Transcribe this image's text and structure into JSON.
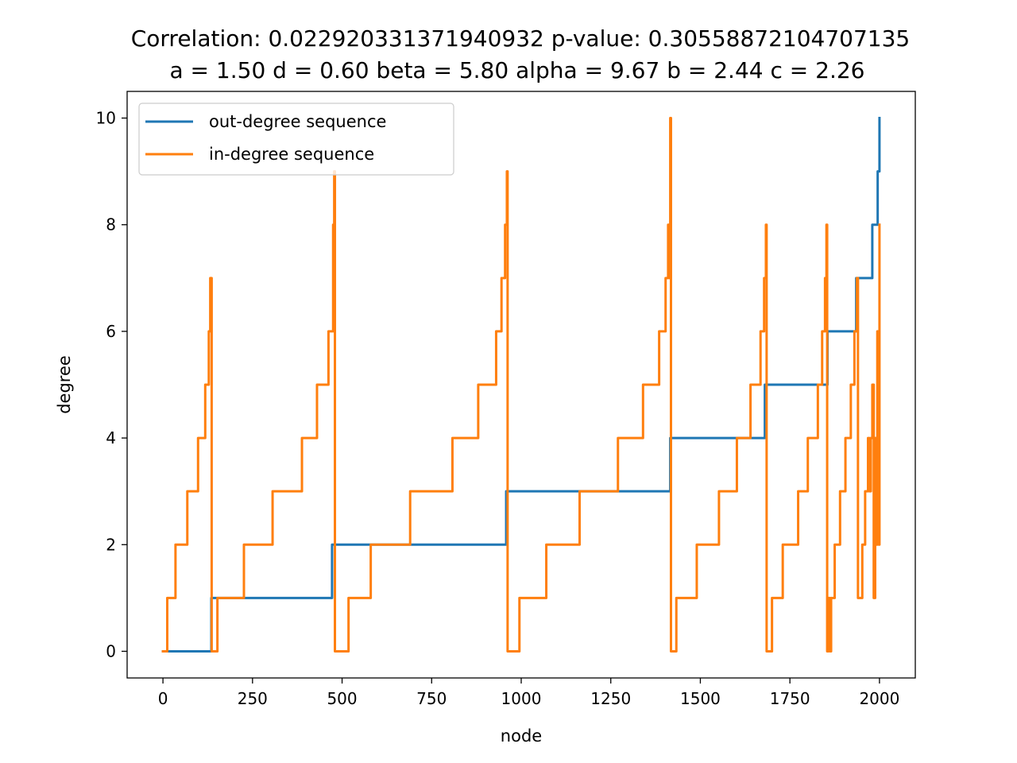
{
  "chart_data": {
    "type": "line",
    "title": "Correlation: 0.022920331371940932 p-value: 0.30558872104707135",
    "subtitle": "a = 1.50 d = 0.60 beta = 5.80 alpha = 9.67 b = 2.44 c = 2.26",
    "xlabel": "node",
    "ylabel": "degree",
    "xlim": [
      -100,
      2100
    ],
    "ylim": [
      -0.5,
      10.5
    ],
    "xticks": [
      0,
      250,
      500,
      750,
      1000,
      1250,
      1500,
      1750,
      2000
    ],
    "yticks": [
      0,
      2,
      4,
      6,
      8,
      10
    ],
    "grid": false,
    "legend": "upper-left",
    "series": [
      {
        "name": "out-degree sequence",
        "color": "#1f77b4",
        "points": [
          [
            0,
            0
          ],
          [
            135,
            0
          ],
          [
            135,
            1
          ],
          [
            472,
            1
          ],
          [
            472,
            2
          ],
          [
            958,
            2
          ],
          [
            958,
            3
          ],
          [
            1416,
            3
          ],
          [
            1416,
            4
          ],
          [
            1680,
            4
          ],
          [
            1680,
            5
          ],
          [
            1855,
            5
          ],
          [
            1855,
            6
          ],
          [
            1935,
            6
          ],
          [
            1935,
            7
          ],
          [
            1980,
            7
          ],
          [
            1980,
            8
          ],
          [
            1995,
            8
          ],
          [
            1995,
            9
          ],
          [
            2000,
            9
          ],
          [
            2000,
            10
          ]
        ]
      },
      {
        "name": "in-degree sequence",
        "color": "#ff7f0e",
        "points": [
          [
            0,
            0
          ],
          [
            12,
            0
          ],
          [
            12,
            1
          ],
          [
            35,
            1
          ],
          [
            35,
            2
          ],
          [
            68,
            2
          ],
          [
            68,
            3
          ],
          [
            98,
            3
          ],
          [
            98,
            4
          ],
          [
            118,
            4
          ],
          [
            118,
            5
          ],
          [
            128,
            5
          ],
          [
            128,
            6
          ],
          [
            132,
            6
          ],
          [
            132,
            7
          ],
          [
            136,
            7
          ],
          [
            136,
            0
          ],
          [
            152,
            0
          ],
          [
            152,
            1
          ],
          [
            226,
            1
          ],
          [
            226,
            2
          ],
          [
            306,
            2
          ],
          [
            306,
            3
          ],
          [
            388,
            3
          ],
          [
            388,
            4
          ],
          [
            430,
            4
          ],
          [
            430,
            5
          ],
          [
            462,
            5
          ],
          [
            462,
            6
          ],
          [
            475,
            6
          ],
          [
            475,
            8
          ],
          [
            478,
            8
          ],
          [
            478,
            9
          ],
          [
            480,
            9
          ],
          [
            480,
            0
          ],
          [
            518,
            0
          ],
          [
            518,
            1
          ],
          [
            580,
            1
          ],
          [
            580,
            2
          ],
          [
            690,
            2
          ],
          [
            690,
            3
          ],
          [
            808,
            3
          ],
          [
            808,
            4
          ],
          [
            880,
            4
          ],
          [
            880,
            5
          ],
          [
            930,
            5
          ],
          [
            930,
            6
          ],
          [
            945,
            6
          ],
          [
            945,
            7
          ],
          [
            955,
            7
          ],
          [
            955,
            8
          ],
          [
            960,
            8
          ],
          [
            960,
            9
          ],
          [
            962,
            9
          ],
          [
            962,
            0
          ],
          [
            995,
            0
          ],
          [
            995,
            1
          ],
          [
            1070,
            1
          ],
          [
            1070,
            2
          ],
          [
            1163,
            2
          ],
          [
            1163,
            3
          ],
          [
            1270,
            3
          ],
          [
            1270,
            4
          ],
          [
            1340,
            4
          ],
          [
            1340,
            5
          ],
          [
            1385,
            5
          ],
          [
            1385,
            6
          ],
          [
            1403,
            6
          ],
          [
            1403,
            7
          ],
          [
            1410,
            7
          ],
          [
            1410,
            8
          ],
          [
            1413,
            8
          ],
          [
            1413,
            7
          ],
          [
            1416,
            7
          ],
          [
            1416,
            10
          ],
          [
            1418,
            10
          ],
          [
            1418,
            0
          ],
          [
            1433,
            0
          ],
          [
            1433,
            1
          ],
          [
            1490,
            1
          ],
          [
            1490,
            2
          ],
          [
            1552,
            2
          ],
          [
            1552,
            3
          ],
          [
            1602,
            3
          ],
          [
            1602,
            4
          ],
          [
            1640,
            4
          ],
          [
            1640,
            5
          ],
          [
            1668,
            5
          ],
          [
            1668,
            6
          ],
          [
            1678,
            6
          ],
          [
            1678,
            7
          ],
          [
            1683,
            7
          ],
          [
            1683,
            8
          ],
          [
            1685,
            8
          ],
          [
            1685,
            0
          ],
          [
            1700,
            0
          ],
          [
            1700,
            1
          ],
          [
            1730,
            1
          ],
          [
            1730,
            2
          ],
          [
            1773,
            2
          ],
          [
            1773,
            3
          ],
          [
            1800,
            3
          ],
          [
            1800,
            4
          ],
          [
            1828,
            4
          ],
          [
            1828,
            5
          ],
          [
            1840,
            5
          ],
          [
            1840,
            6
          ],
          [
            1848,
            6
          ],
          [
            1848,
            7
          ],
          [
            1852,
            7
          ],
          [
            1852,
            8
          ],
          [
            1854,
            8
          ],
          [
            1854,
            0
          ],
          [
            1858,
            0
          ],
          [
            1858,
            1
          ],
          [
            1862,
            1
          ],
          [
            1862,
            0
          ],
          [
            1865,
            0
          ],
          [
            1865,
            1
          ],
          [
            1875,
            1
          ],
          [
            1875,
            2
          ],
          [
            1890,
            2
          ],
          [
            1890,
            3
          ],
          [
            1905,
            3
          ],
          [
            1905,
            4
          ],
          [
            1920,
            4
          ],
          [
            1920,
            5
          ],
          [
            1930,
            5
          ],
          [
            1930,
            6
          ],
          [
            1937,
            6
          ],
          [
            1937,
            7
          ],
          [
            1940,
            7
          ],
          [
            1940,
            1
          ],
          [
            1952,
            1
          ],
          [
            1952,
            2
          ],
          [
            1960,
            2
          ],
          [
            1960,
            3
          ],
          [
            1968,
            3
          ],
          [
            1968,
            4
          ],
          [
            1972,
            4
          ],
          [
            1972,
            3
          ],
          [
            1976,
            3
          ],
          [
            1976,
            4
          ],
          [
            1980,
            4
          ],
          [
            1980,
            5
          ],
          [
            1984,
            5
          ],
          [
            1984,
            1
          ],
          [
            1988,
            1
          ],
          [
            1988,
            4
          ],
          [
            1991,
            4
          ],
          [
            1991,
            2
          ],
          [
            1994,
            2
          ],
          [
            1994,
            6
          ],
          [
            1996,
            6
          ],
          [
            1996,
            3
          ],
          [
            1998,
            3
          ],
          [
            1998,
            2
          ],
          [
            2000,
            2
          ],
          [
            2000,
            8
          ]
        ]
      }
    ]
  }
}
